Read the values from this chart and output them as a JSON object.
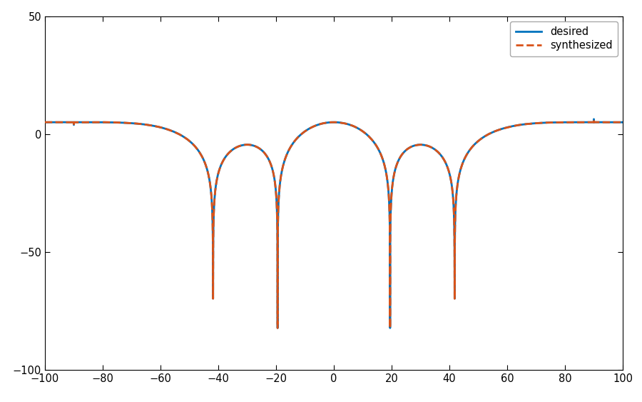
{
  "title": "",
  "xlim": [
    -100,
    100
  ],
  "ylim": [
    -100,
    50
  ],
  "xticks": [
    -100,
    -80,
    -60,
    -40,
    -20,
    0,
    20,
    40,
    60,
    80,
    100
  ],
  "yticks": [
    -100,
    -50,
    0,
    50
  ],
  "desired_color": "#0072BD",
  "synthesized_color": "#D95319",
  "desired_linewidth": 2.0,
  "synthesized_linewidth": 2.0,
  "synthesized_linestyle": "--",
  "legend_labels": [
    "desired",
    "synthesized"
  ],
  "legend_loc": "upper right",
  "background_color": "#ffffff",
  "figsize": [
    9.0,
    5.63
  ],
  "dpi": 100
}
